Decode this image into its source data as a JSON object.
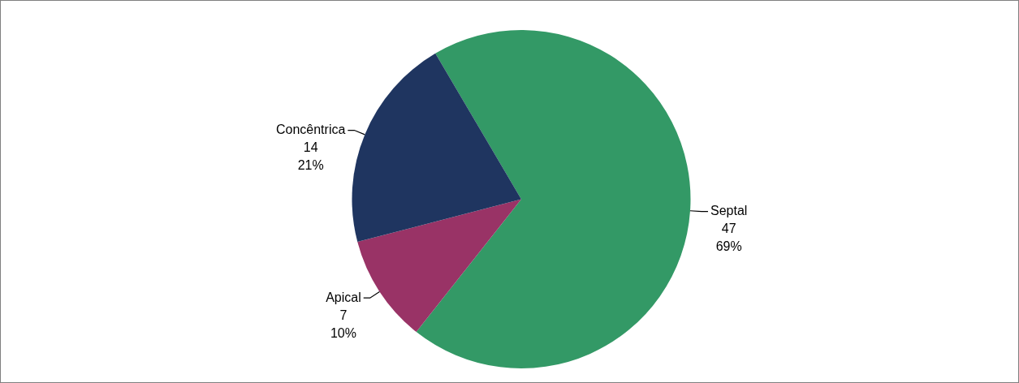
{
  "chart_data": {
    "type": "pie",
    "categories": [
      "Septal",
      "Apical",
      "Concêntrica"
    ],
    "values": [
      47,
      7,
      14
    ],
    "colors": [
      "#339966",
      "#993366",
      "#1f3560"
    ],
    "value_labels": [
      "47\n69%",
      "7\n10%",
      "14\n21%"
    ],
    "legend": false
  }
}
